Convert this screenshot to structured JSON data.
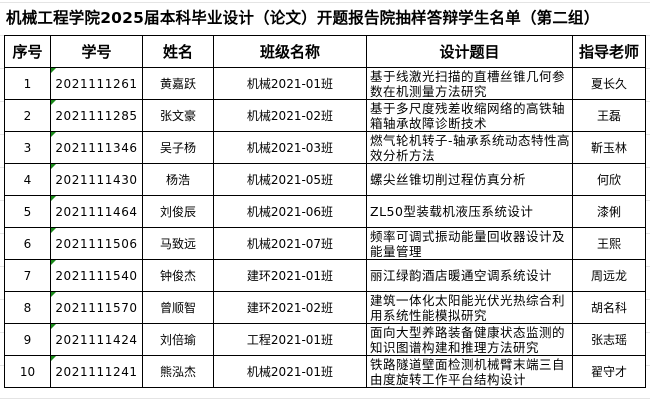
{
  "title": "机械工程学院2025届本科毕业设计（论文）开题报告院抽样答辩学生名单（第二组）",
  "columns": [
    "序号",
    "学号",
    "姓名",
    "班级名称",
    "设计题目",
    "指导老师"
  ],
  "rows": [
    {
      "no": "1",
      "id": "2021111261",
      "name": "黄嘉跃",
      "class": "机械2021-01班",
      "topic": "基于线激光扫描的直槽丝锥几何参数在机测量方法研究",
      "advisor": "夏长久"
    },
    {
      "no": "2",
      "id": "2021111285",
      "name": "张文豪",
      "class": "机械2021-02班",
      "topic": "基于多尺度残差收缩网络的高铁轴箱轴承故障诊断技术",
      "advisor": "王磊"
    },
    {
      "no": "3",
      "id": "2021111346",
      "name": "吴子杨",
      "class": "机械2021-03班",
      "topic": "燃气轮机转子-轴承系统动态特性高效分析方法",
      "advisor": "靳玉林"
    },
    {
      "no": "4",
      "id": "2021111430",
      "name": "杨浩",
      "class": "机械2021-05班",
      "topic": "螺尖丝锥切削过程仿真分析",
      "advisor": "何欣"
    },
    {
      "no": "5",
      "id": "2021111464",
      "name": "刘俊辰",
      "class": "机械2021-06班",
      "topic": "ZL50型装载机液压系统设计",
      "advisor": "漆俐"
    },
    {
      "no": "6",
      "id": "2021111506",
      "name": "马致远",
      "class": "机械2021-07班",
      "topic": "频率可调式振动能量回收器设计及能量管理",
      "advisor": "王熙"
    },
    {
      "no": "7",
      "id": "2021111540",
      "name": "钟俊杰",
      "class": "建环2021-01班",
      "topic": "丽江绿韵酒店暖通空调系统设计",
      "advisor": "周远龙"
    },
    {
      "no": "8",
      "id": "2021111570",
      "name": "曾顺智",
      "class": "建环2021-02班",
      "topic": "建筑一体化太阳能光伏光热综合利用系统性能模拟研究",
      "advisor": "胡名科"
    },
    {
      "no": "9",
      "id": "2021111424",
      "name": "刘倍瑜",
      "class": "工程2021-01班",
      "topic": "面向大型养路装备健康状态监测的知识图谱构建和推理方法研究",
      "advisor": "张志瑶"
    },
    {
      "no": "10",
      "id": "2021111241",
      "name": "熊泓杰",
      "class": "机械2021-01班",
      "topic": "铁路隧道壁面检测机械臂末端三自由度旋转工作平台结构设计",
      "advisor": "翟守才"
    }
  ]
}
